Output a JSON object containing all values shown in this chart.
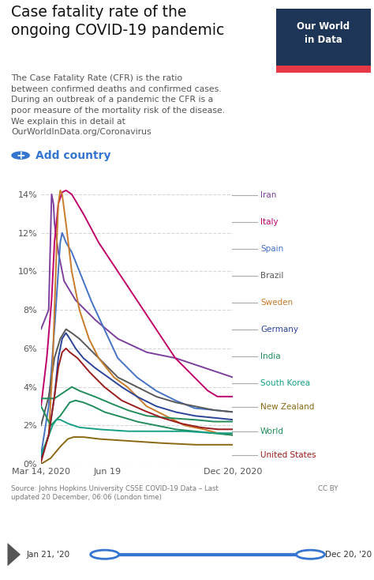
{
  "title": "Case fatality rate of the\nongoing COVID-19 pandemic",
  "subtitle": "The Case Fatality Rate (CFR) is the ratio\nbetween confirmed deaths and confirmed cases.\nDuring an outbreak of a pandemic the CFR is a\npoor measure of the mortality risk of the disease.\nWe explain this in detail at\nOurWorldInData.org/Coronavirus",
  "add_country_text": "Add country",
  "source_text": "Source: Johns Hopkins University CSSE COVID-19 Data – Last\nupdated 20 December, 06:06 (London time)",
  "cc_by_text": "CC BY",
  "slider_left": "Jan 21, '20",
  "slider_right": "Dec 20, '20",
  "x_tick_labels": [
    "Mar 14, 2020",
    "Jun 19",
    "Dec 20, 2020"
  ],
  "x_tick_pos": [
    0.0,
    0.345,
    1.0
  ],
  "y_ticks": [
    0,
    2,
    4,
    6,
    8,
    10,
    12,
    14
  ],
  "logo_bg": "#1d3557",
  "logo_red": "#e63946",
  "background": "#ffffff",
  "grid_color": "#cccccc",
  "countries": [
    "Iran",
    "Italy",
    "Spain",
    "Brazil",
    "Sweden",
    "Germany",
    "India",
    "South Korea",
    "New Zealand",
    "World",
    "United States"
  ],
  "colors": {
    "Iran": "#7b3f9e",
    "Italy": "#c0006a",
    "Spain": "#4472c4",
    "Brazil": "#595959",
    "Sweden": "#c97b2a",
    "Germany": "#2b4499",
    "India": "#218c5a",
    "South Korea": "#17a085",
    "New Zealand": "#8b6914",
    "World": "#218c5a",
    "United States": "#9b1c1c"
  }
}
